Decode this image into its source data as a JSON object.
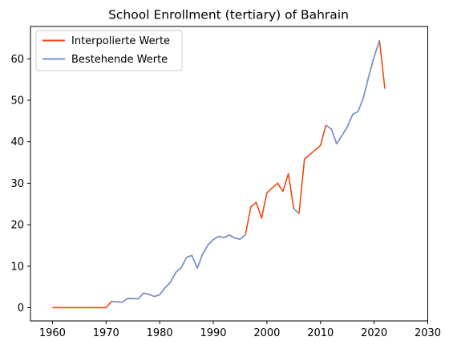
{
  "chart_data": {
    "type": "line",
    "title": "School Enrollment (tertiary) of Bahrain",
    "xlabel": "",
    "ylabel": "",
    "xlim": [
      1955.9,
      2030
    ],
    "ylim": [
      -3.2,
      67.8
    ],
    "xticks": [
      1960,
      1970,
      1980,
      1990,
      2000,
      2010,
      2020,
      2030
    ],
    "yticks": [
      0,
      10,
      20,
      30,
      40,
      50,
      60
    ],
    "grid": false,
    "legend_position": "top-left",
    "series": [
      {
        "name": "Interpolierte Werte",
        "color": "#ee4a10",
        "x": [
          1960,
          1961,
          1962,
          1963,
          1964,
          1965,
          1966,
          1967,
          1968,
          1969,
          1970,
          1971,
          1972,
          1973,
          1974,
          1975,
          1976,
          1977,
          1978,
          1979,
          1980,
          1981,
          1982,
          1983,
          1984,
          1985,
          1986,
          1987,
          1988,
          1989,
          1990,
          1991,
          1992,
          1993,
          1994,
          1995,
          1996,
          1997,
          1998,
          1999,
          2000,
          2001,
          2002,
          2003,
          2004,
          2005,
          2006,
          2007,
          2008,
          2009,
          2010,
          2011,
          2012,
          2013,
          2014,
          2015,
          2016,
          2017,
          2018,
          2019,
          2020,
          2021,
          2022
        ],
        "y": [
          0,
          0,
          0,
          0,
          0,
          0,
          0,
          0,
          0,
          0,
          0,
          1.5,
          1.4,
          1.3,
          2.2,
          2.2,
          2.1,
          3.5,
          3.2,
          2.7,
          3.1,
          4.8,
          6.1,
          8.5,
          9.6,
          12.1,
          12.6,
          9.5,
          12.9,
          15.1,
          16.4,
          17.2,
          16.9,
          17.5,
          16.8,
          16.5,
          17.6,
          24.3,
          25.4,
          21.6,
          27.7,
          28.9,
          30.0,
          28.0,
          32.3,
          23.9,
          22.7,
          35.8,
          36.9,
          38.0,
          39.1,
          44.0,
          43.1,
          39.5,
          41.5,
          43.6,
          46.6,
          47.3,
          50.6,
          55.8,
          60.5,
          64.4,
          52.8
        ]
      },
      {
        "name": "Bestehende Werte",
        "color": "#6f96dc",
        "x": [
          1971,
          1972,
          1973,
          1974,
          1975,
          1976,
          1977,
          1978,
          1979,
          1980,
          1981,
          1982,
          1983,
          1984,
          1985,
          1986,
          1987,
          1988,
          1989,
          1990,
          1991,
          1992,
          1993,
          1994,
          1995,
          1996,
          null,
          2005,
          2006,
          null,
          2011,
          2012,
          2013,
          2014,
          2015,
          2016,
          2017,
          2018,
          2019,
          2020,
          2021
        ],
        "y": [
          1.5,
          1.4,
          1.3,
          2.2,
          2.2,
          2.1,
          3.5,
          3.2,
          2.7,
          3.1,
          4.8,
          6.1,
          8.5,
          9.6,
          12.1,
          12.6,
          9.5,
          12.9,
          15.1,
          16.4,
          17.2,
          16.9,
          17.5,
          16.8,
          16.5,
          17.6,
          null,
          23.9,
          22.7,
          null,
          44.0,
          43.1,
          39.5,
          41.5,
          43.6,
          46.6,
          47.3,
          50.6,
          55.8,
          60.5,
          64.4
        ]
      }
    ]
  }
}
